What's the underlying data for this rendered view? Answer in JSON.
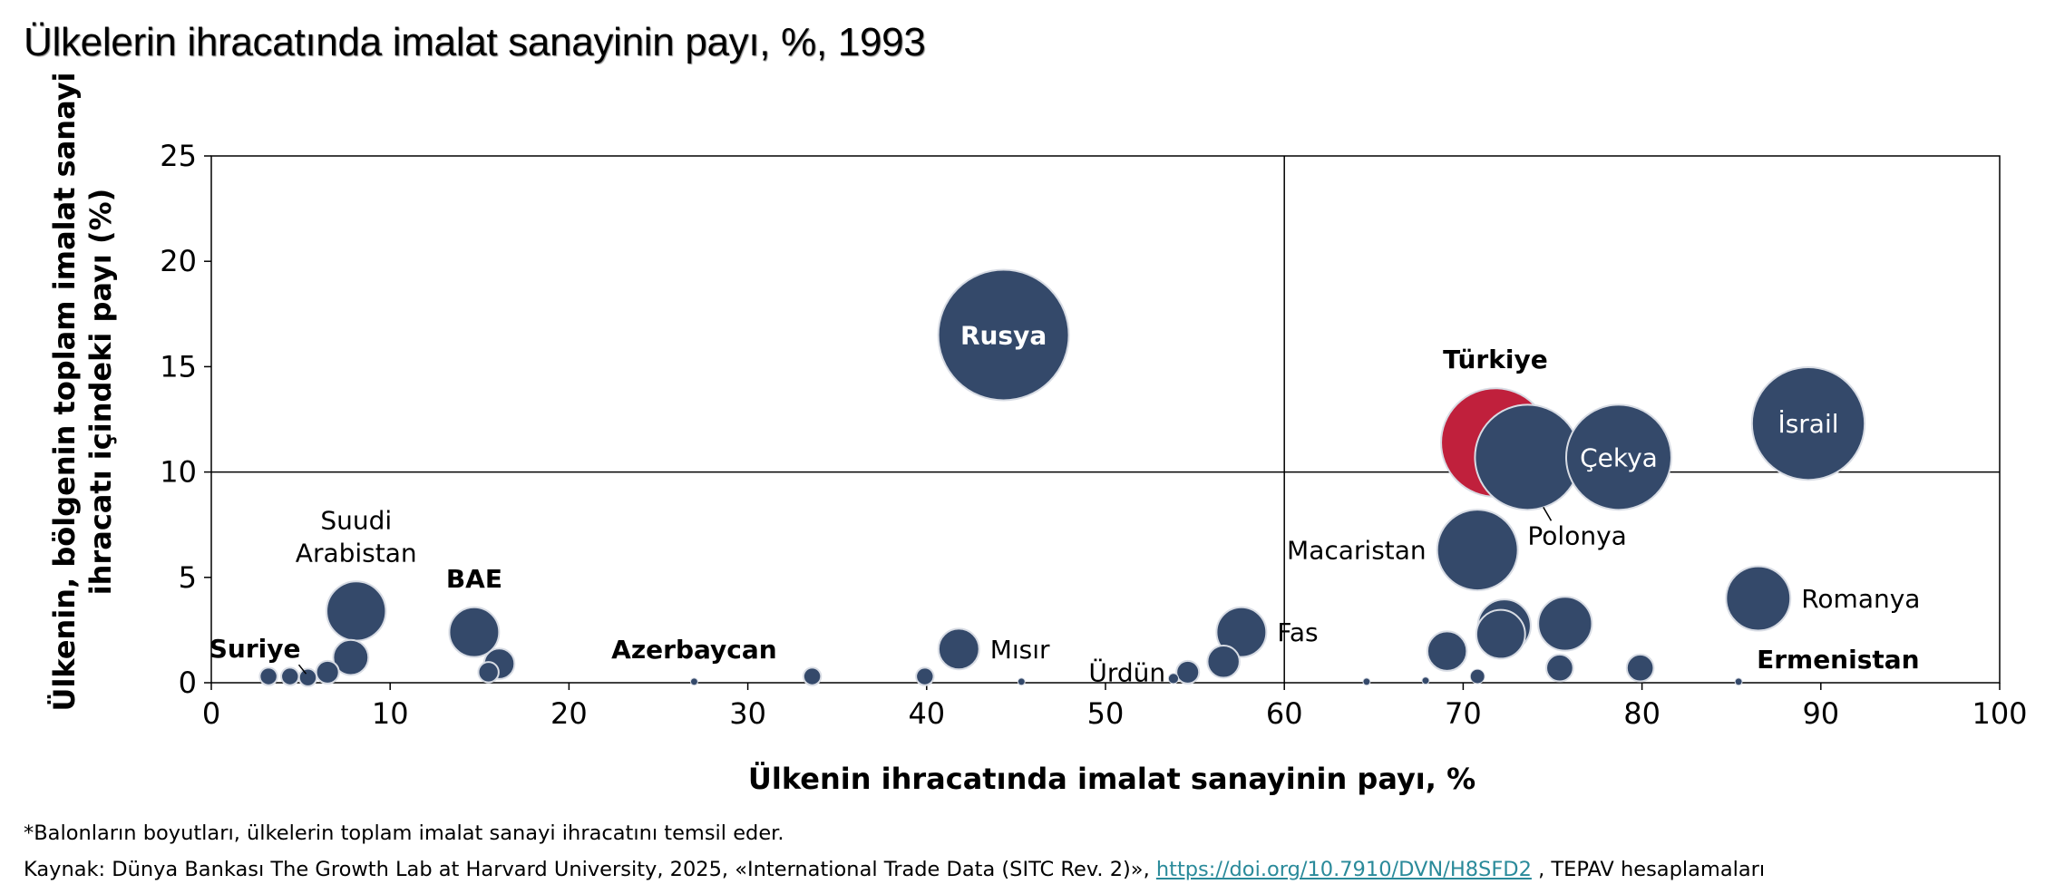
{
  "title": "Ülkelerin ihracatında imalat sanayinin payı, %, 1993",
  "footnote": "*Balonların boyutları, ülkelerin toplam imalat sanayi ihracatını temsil eder.",
  "source": {
    "prefix": "Kaynak: Dünya Bankası The Growth Lab at Harvard University, 2025, «International Trade Data (SITC Rev. 2)», ",
    "link": "https://doi.org/10.7910/DVN/H8SFD2",
    "suffix": " , TEPAV hesaplamaları"
  },
  "chart_data": {
    "type": "scatter",
    "xlabel": "Ülkenin ihracatında imalat sanayinin payı, %",
    "ylabel": "Ülkenin, bölgenin toplam imalat sanayi ihracatı içindeki payı (%)",
    "xlim": [
      0,
      100
    ],
    "ylim": [
      0,
      25
    ],
    "xticks": [
      0,
      10,
      20,
      30,
      40,
      50,
      60,
      70,
      80,
      90,
      100
    ],
    "yticks": [
      0,
      5,
      10,
      15,
      20,
      25
    ],
    "reference_lines": {
      "x": 60,
      "y": 10
    },
    "grid": false,
    "colors": {
      "default": "#34496a",
      "highlight": "#c0203c",
      "edge": "#d8dce4"
    },
    "points": [
      {
        "x": 44.3,
        "y": 16.5,
        "size": 16.5,
        "label": "Rusya",
        "label_pos": "inside-bold"
      },
      {
        "x": 71.8,
        "y": 11.4,
        "size": 11.4,
        "label": "Türkiye",
        "label_pos": "above-bold",
        "highlight": true
      },
      {
        "x": 73.6,
        "y": 10.7,
        "size": 10.7,
        "label": "Polonya",
        "label_pos": "below-right"
      },
      {
        "x": 78.7,
        "y": 10.7,
        "size": 10.7,
        "label": "Çekya",
        "label_pos": "inside"
      },
      {
        "x": 89.3,
        "y": 12.3,
        "size": 12.3,
        "label": "İsrail",
        "label_pos": "inside"
      },
      {
        "x": 70.8,
        "y": 6.3,
        "size": 6.3,
        "label": "Macaristan",
        "label_pos": "left"
      },
      {
        "x": 86.5,
        "y": 4.0,
        "size": 4.0,
        "label": "Romanya",
        "label_pos": "right"
      },
      {
        "x": 8.1,
        "y": 3.4,
        "size": 3.4,
        "label": "Suudi Arabistan",
        "label_pos": "above"
      },
      {
        "x": 14.7,
        "y": 2.4,
        "size": 2.4,
        "label": "BAE",
        "label_pos": "above-bold"
      },
      {
        "x": 57.6,
        "y": 2.4,
        "size": 2.4,
        "label": "Fas",
        "label_pos": "right"
      },
      {
        "x": 41.8,
        "y": 1.6,
        "size": 1.6,
        "label": "Mısır",
        "label_pos": "right"
      },
      {
        "x": 54.6,
        "y": 0.5,
        "size": 0.5,
        "label": "Ürdün",
        "label_pos": "left"
      },
      {
        "x": 5.4,
        "y": 0.25,
        "size": 0.3,
        "label": "Suriye",
        "label_pos": "above-left-bold"
      },
      {
        "x": 27.0,
        "y": 0.05,
        "size": 0.05,
        "label": "Azerbaycan",
        "label_pos": "above-bold"
      },
      {
        "x": 85.4,
        "y": 0.05,
        "size": 0.05,
        "label": "Ermenistan",
        "label_pos": "above-right-bold"
      },
      {
        "x": 72.3,
        "y": 2.7,
        "size": 2.7
      },
      {
        "x": 72.1,
        "y": 2.3,
        "size": 2.3
      },
      {
        "x": 75.7,
        "y": 2.8,
        "size": 2.8
      },
      {
        "x": 69.1,
        "y": 1.5,
        "size": 1.5
      },
      {
        "x": 56.6,
        "y": 1.0,
        "size": 1.0
      },
      {
        "x": 7.8,
        "y": 1.2,
        "size": 1.2
      },
      {
        "x": 16.1,
        "y": 0.9,
        "size": 0.9
      },
      {
        "x": 15.5,
        "y": 0.5,
        "size": 0.4
      },
      {
        "x": 75.4,
        "y": 0.7,
        "size": 0.7
      },
      {
        "x": 79.9,
        "y": 0.7,
        "size": 0.7
      },
      {
        "x": 3.2,
        "y": 0.3,
        "size": 0.3
      },
      {
        "x": 4.4,
        "y": 0.3,
        "size": 0.3
      },
      {
        "x": 6.5,
        "y": 0.5,
        "size": 0.5
      },
      {
        "x": 33.6,
        "y": 0.3,
        "size": 0.3
      },
      {
        "x": 39.9,
        "y": 0.3,
        "size": 0.3
      },
      {
        "x": 70.8,
        "y": 0.3,
        "size": 0.2
      },
      {
        "x": 53.8,
        "y": 0.2,
        "size": 0.1
      },
      {
        "x": 64.6,
        "y": 0.05,
        "size": 0.05
      },
      {
        "x": 67.9,
        "y": 0.1,
        "size": 0.05
      },
      {
        "x": 45.3,
        "y": 0.05,
        "size": 0.05
      }
    ]
  }
}
